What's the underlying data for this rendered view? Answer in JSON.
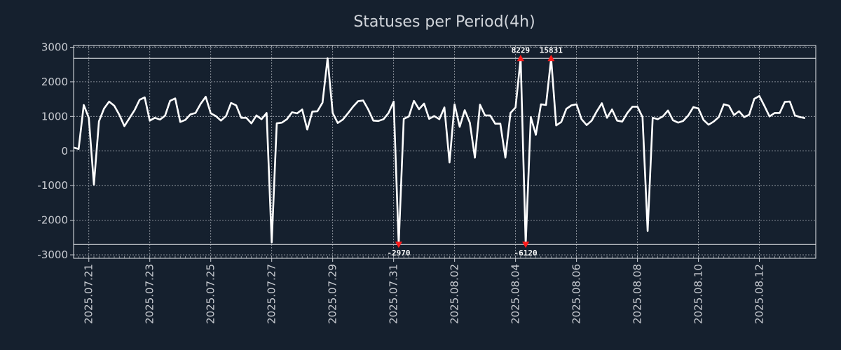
{
  "chart_data": {
    "type": "line",
    "title": "Statuses per Period(4h)",
    "xlabel": "",
    "ylabel": "",
    "ylim": [
      -3100,
      3050
    ],
    "y_ticks": [
      3000,
      2000,
      1000,
      0,
      -1000,
      -2000,
      -3000
    ],
    "y_tick_labels": [
      "3000",
      "2000",
      "1000",
      "0",
      "-1000",
      "-2000",
      "-3000"
    ],
    "x_ticks": [
      {
        "label": "2025.07.21",
        "day": 0.5
      },
      {
        "label": "2025.07.23",
        "day": 2.5
      },
      {
        "label": "2025.07.25",
        "day": 4.5
      },
      {
        "label": "2025.07.27",
        "day": 6.5
      },
      {
        "label": "2025.07.29",
        "day": 8.5
      },
      {
        "label": "2025.07.31",
        "day": 10.5
      },
      {
        "label": "2025.08.02",
        "day": 12.5
      },
      {
        "label": "2025.08.04",
        "day": 14.5
      },
      {
        "label": "2025.08.06",
        "day": 16.5
      },
      {
        "label": "2025.08.08",
        "day": 18.5
      },
      {
        "label": "2025.08.10",
        "day": 20.5
      },
      {
        "label": "2025.08.12",
        "day": 22.5
      }
    ],
    "x_range_days": [
      0.0,
      24.35
    ],
    "period_hours": 4,
    "clip_lines": {
      "upper": 2680,
      "lower": -2700
    },
    "series": [
      {
        "name": "statuses",
        "color": "#ffffff",
        "values": [
          100,
          60,
          1330,
          960,
          -970,
          860,
          1230,
          1430,
          1310,
          1050,
          720,
          950,
          1180,
          1480,
          1550,
          880,
          960,
          910,
          1020,
          1450,
          1520,
          840,
          900,
          1060,
          1100,
          1360,
          1570,
          1090,
          1010,
          880,
          1010,
          1390,
          1320,
          960,
          960,
          800,
          1030,
          920,
          1100,
          -2640,
          800,
          820,
          920,
          1120,
          1090,
          1200,
          620,
          1140,
          1150,
          1400,
          2680,
          1100,
          810,
          910,
          1090,
          1280,
          1440,
          1460,
          1200,
          880,
          870,
          920,
          1100,
          1430,
          -2700,
          930,
          1000,
          1450,
          1210,
          1370,
          930,
          1010,
          920,
          1260,
          -330,
          1350,
          700,
          1180,
          820,
          -190,
          1340,
          1030,
          1030,
          790,
          790,
          -190,
          1100,
          1260,
          2680,
          -2700,
          980,
          470,
          1350,
          1330,
          2680,
          740,
          840,
          1220,
          1320,
          1350,
          920,
          750,
          880,
          1150,
          1380,
          960,
          1200,
          880,
          850,
          1100,
          1280,
          1280,
          980,
          -2310,
          960,
          920,
          1000,
          1170,
          890,
          820,
          870,
          1030,
          1270,
          1230,
          900,
          760,
          850,
          980,
          1350,
          1310,
          1040,
          1150,
          980,
          1050,
          1510,
          1590,
          1300,
          1000,
          1100,
          1100,
          1420,
          1430,
          1030,
          980,
          950
        ]
      }
    ],
    "annotations": [
      {
        "label": "8229",
        "index": 88,
        "position": "top"
      },
      {
        "label": "15831",
        "index": 94,
        "position": "top"
      },
      {
        "label": "-2970",
        "index": 64,
        "position": "bottom"
      },
      {
        "label": "-6120",
        "index": 89,
        "position": "bottom"
      }
    ],
    "grid": true,
    "legend": "none"
  }
}
